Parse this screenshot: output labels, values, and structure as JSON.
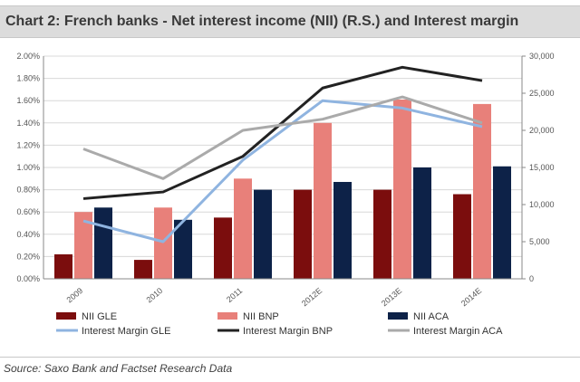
{
  "chart_data": {
    "type": "bar",
    "title": "Chart 2: French banks - Net interest income (NII) (R.S.) and Interest margin",
    "source": "Source: Saxo Bank and Factset Research Data",
    "categories": [
      "2009",
      "2010",
      "2011",
      "2012E",
      "2013E",
      "2014E"
    ],
    "left_axis": {
      "ticks": [
        "0.00%",
        "0.20%",
        "0.40%",
        "0.60%",
        "0.80%",
        "1.00%",
        "1.20%",
        "1.40%",
        "1.60%",
        "1.80%",
        "2.00%"
      ],
      "ylim": [
        0,
        2.0
      ]
    },
    "right_axis": {
      "ticks": [
        "0",
        "5,000",
        "10,000",
        "15,000",
        "20,000",
        "25,000",
        "30,000"
      ],
      "ylim": [
        0,
        30000
      ]
    },
    "series": [
      {
        "name": "NII GLE",
        "kind": "bar",
        "color": "#7b0d0d",
        "values": [
          0.22,
          0.17,
          0.55,
          0.8,
          0.8,
          0.76
        ]
      },
      {
        "name": "NII BNP",
        "kind": "bar",
        "color": "#e8807a",
        "values": [
          0.6,
          0.64,
          0.9,
          1.4,
          1.61,
          1.57
        ]
      },
      {
        "name": "NII ACA",
        "kind": "bar",
        "color": "#0d2248",
        "values": [
          0.64,
          0.53,
          0.8,
          0.87,
          1.0,
          1.01
        ]
      },
      {
        "name": "Interest Margin GLE",
        "kind": "line",
        "color": "#8fb4e0",
        "values": [
          7800,
          5000,
          16000,
          24000,
          23000,
          20500
        ]
      },
      {
        "name": "Interest Margin BNP",
        "kind": "line",
        "color": "#222222",
        "values": [
          10800,
          11700,
          16500,
          25700,
          28500,
          26700
        ]
      },
      {
        "name": "Interest Margin ACA",
        "kind": "line",
        "color": "#aaaaaa",
        "values": [
          17500,
          13500,
          20000,
          21500,
          24500,
          21000
        ]
      }
    ]
  }
}
